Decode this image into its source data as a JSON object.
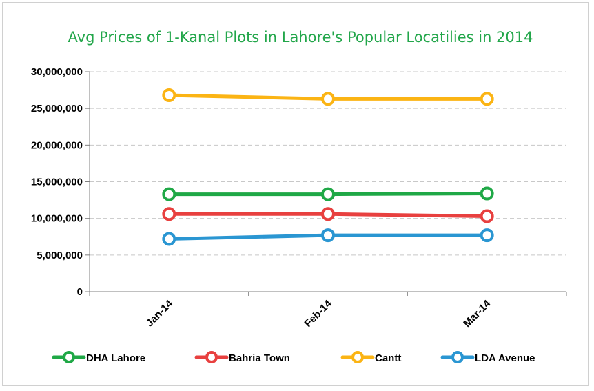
{
  "chart_data": {
    "type": "line",
    "title": "Avg Prices of 1-Kanal Plots in Lahore's Popular Locatilies in 2014",
    "xlabel": "",
    "ylabel": "",
    "categories": [
      "Jan-14",
      "Feb-14",
      "Mar-14"
    ],
    "ylim": [
      0,
      30000000
    ],
    "yticks": [
      0,
      5000000,
      10000000,
      15000000,
      20000000,
      25000000,
      30000000
    ],
    "ytick_labels": [
      "0",
      "5,000,000",
      "10,000,000",
      "15,000,000",
      "20,000,000",
      "25,000,000",
      "30,000,000"
    ],
    "grid": true,
    "legend_position": "bottom",
    "series": [
      {
        "name": "DHA Lahore",
        "color": "#1fa846",
        "values": [
          13300000,
          13300000,
          13400000
        ]
      },
      {
        "name": "Bahria Town",
        "color": "#e8403f",
        "values": [
          10600000,
          10600000,
          10300000
        ]
      },
      {
        "name": "Cantt",
        "color": "#fbb414",
        "values": [
          26800000,
          26300000,
          26300000
        ]
      },
      {
        "name": "LDA Avenue",
        "color": "#2a96d2",
        "values": [
          7200000,
          7700000,
          7700000
        ]
      }
    ]
  }
}
